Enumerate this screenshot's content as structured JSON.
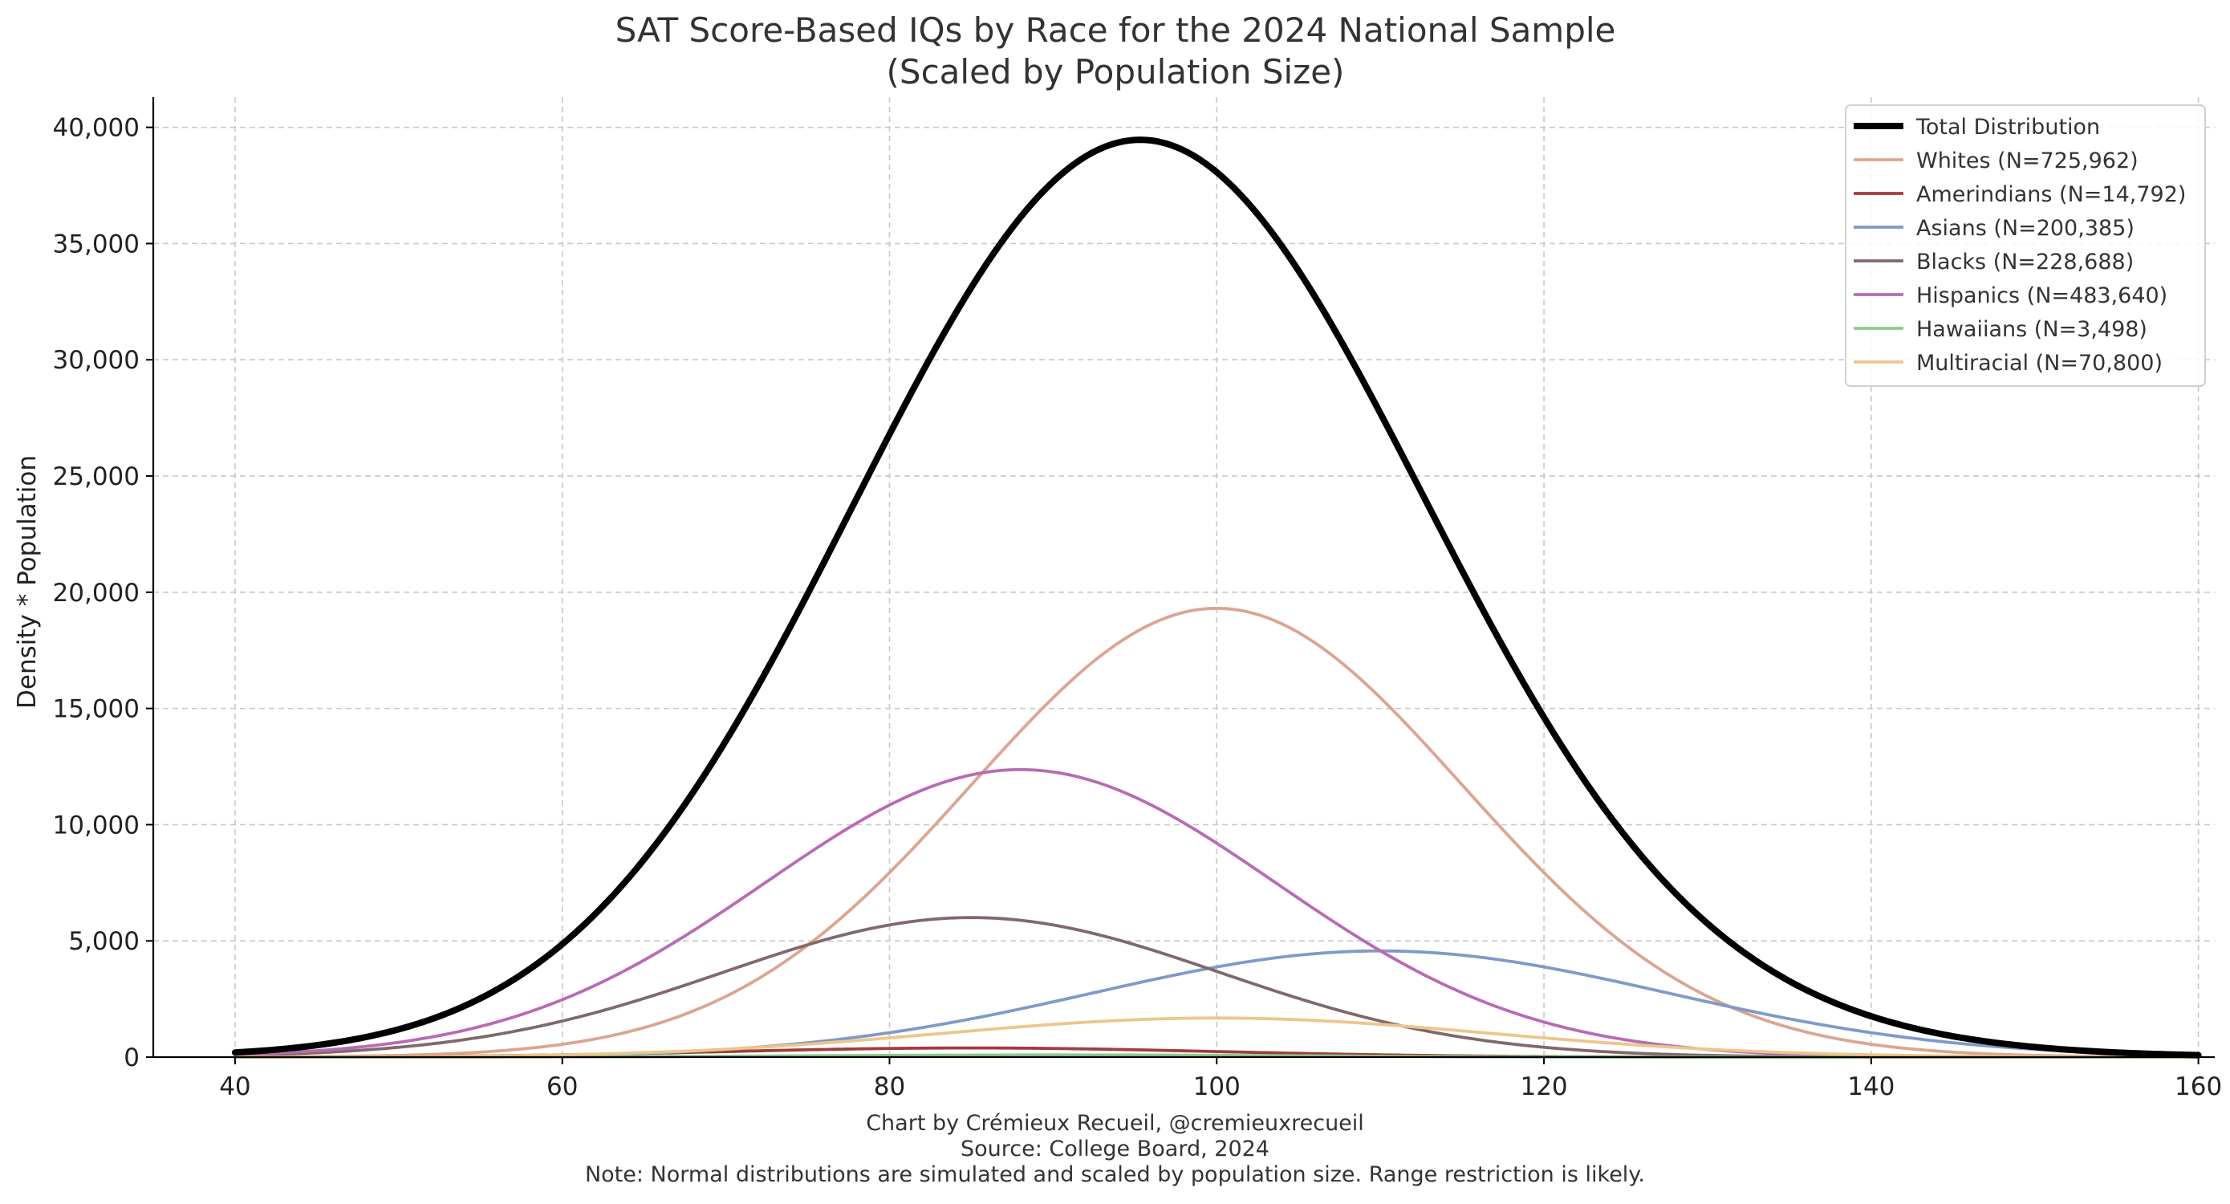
{
  "chart_data": {
    "type": "line",
    "title": "SAT Score-Based IQs by Race for the 2024 National Sample",
    "subtitle": "(Scaled by Population Size)",
    "xlabel": "",
    "ylabel": "Density * Population",
    "xlim": [
      35,
      161
    ],
    "ylim": [
      0,
      41300
    ],
    "x_ticks": [
      40,
      60,
      80,
      100,
      120,
      140,
      160
    ],
    "x_tick_labels": [
      "40",
      "60",
      "80",
      "100",
      "120",
      "140",
      "160"
    ],
    "y_ticks": [
      0,
      5000,
      10000,
      15000,
      20000,
      25000,
      30000,
      35000,
      40000
    ],
    "y_tick_labels": [
      "0",
      "5,000",
      "10,000",
      "15,000",
      "20,000",
      "25,000",
      "30,000",
      "35,000",
      "40,000"
    ],
    "grid": true,
    "legend_position": "top-right",
    "x_range": [
      40,
      160
    ],
    "series": [
      {
        "name": "Total Distribution",
        "color": "#000000",
        "total": true,
        "mean": null,
        "sd": null,
        "population": null
      },
      {
        "name": "Whites (N=725,962)",
        "color": "#dba591",
        "mean": 100,
        "sd": 15,
        "population": 725962
      },
      {
        "name": "Amerindians (N=14,792)",
        "color": "#a13d3d",
        "mean": 85,
        "sd": 15,
        "population": 14792
      },
      {
        "name": "Asians (N=200,385)",
        "color": "#7f9ac8",
        "mean": 110,
        "sd": 17.5,
        "population": 200385
      },
      {
        "name": "Blacks (N=228,688)",
        "color": "#82686b",
        "mean": 85,
        "sd": 15.2,
        "population": 228688
      },
      {
        "name": "Hispanics (N=483,640)",
        "color": "#b96ab4",
        "mean": 88,
        "sd": 15.6,
        "population": 483640
      },
      {
        "name": "Hawaiians (N=3,498)",
        "color": "#8cc98f",
        "mean": 90,
        "sd": 15,
        "population": 3498
      },
      {
        "name": "Multiracial (N=70,800)",
        "color": "#ecc68b",
        "mean": 100,
        "sd": 16.8,
        "population": 70800
      }
    ]
  },
  "footer": {
    "credit": "Chart by Crémieux Recueil, @cremieuxrecueil",
    "source": "Source: College Board, 2024",
    "note": "Note: Normal distributions are simulated and scaled by population size. Range restriction is likely."
  }
}
